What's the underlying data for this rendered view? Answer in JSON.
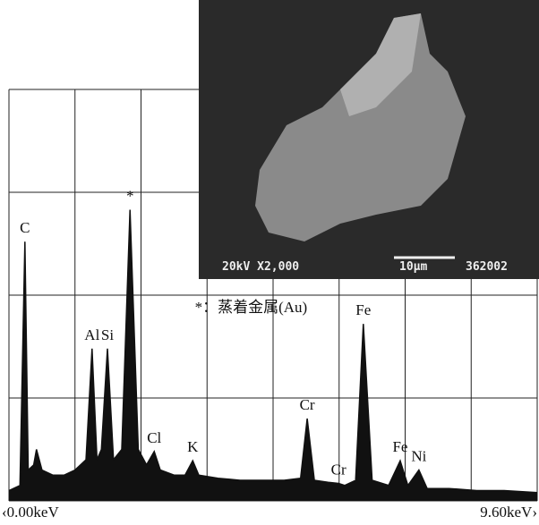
{
  "chart_data": {
    "type": "spectrum",
    "color": "#111111",
    "xlim": [
      0,
      9.6
    ],
    "ylim": [
      0,
      4
    ],
    "xticks": [
      {
        "value": 0,
        "label": "‹0.00keV"
      },
      {
        "value": 9.6,
        "label": "9.60keV›"
      }
    ],
    "x": [
      0,
      0.2,
      0.29,
      0.35,
      0.45,
      0.5,
      0.6,
      0.8,
      1.0,
      1.2,
      1.4,
      1.51,
      1.6,
      1.68,
      1.79,
      1.9,
      2.05,
      2.2,
      2.35,
      2.5,
      2.64,
      2.75,
      3.0,
      3.2,
      3.34,
      3.45,
      3.8,
      4.2,
      4.6,
      5.0,
      5.3,
      5.42,
      5.55,
      5.8,
      5.99,
      6.1,
      6.3,
      6.44,
      6.6,
      6.9,
      7.11,
      7.25,
      7.45,
      7.6,
      8.0,
      8.5,
      9.0,
      9.6
    ],
    "values": [
      0.1,
      0.15,
      2.52,
      0.3,
      0.35,
      0.5,
      0.3,
      0.25,
      0.25,
      0.3,
      0.4,
      1.48,
      0.4,
      0.5,
      1.48,
      0.4,
      0.5,
      2.83,
      0.5,
      0.35,
      0.48,
      0.3,
      0.25,
      0.25,
      0.39,
      0.25,
      0.22,
      0.2,
      0.2,
      0.2,
      0.22,
      0.8,
      0.2,
      0.18,
      0.17,
      0.15,
      0.2,
      1.72,
      0.2,
      0.15,
      0.39,
      0.15,
      0.3,
      0.12,
      0.12,
      0.1,
      0.1,
      0.08
    ],
    "annotations": [
      {
        "text": "C",
        "x": 0.29,
        "y": 2.52
      },
      {
        "text": "Al",
        "x": 1.51,
        "y": 1.48
      },
      {
        "text": "Si",
        "x": 1.79,
        "y": 1.48
      },
      {
        "text": "*",
        "x": 2.2,
        "y": 2.83
      },
      {
        "text": "Cl",
        "x": 2.64,
        "y": 0.48
      },
      {
        "text": "K",
        "x": 3.34,
        "y": 0.39
      },
      {
        "text": "Cr",
        "x": 5.42,
        "y": 0.8
      },
      {
        "text": "Cr",
        "x": 5.99,
        "y": 0.17
      },
      {
        "text": "Fe",
        "x": 6.44,
        "y": 1.72
      },
      {
        "text": "Fe",
        "x": 7.11,
        "y": 0.39
      },
      {
        "text": "Ni",
        "x": 7.45,
        "y": 0.3
      },
      {
        "text": "*：蒸着金属(Au)",
        "x": 4.4,
        "y": 1.75
      }
    ]
  },
  "image": {
    "labels": [
      "20kV X2,000",
      "10μm",
      "362002"
    ]
  }
}
